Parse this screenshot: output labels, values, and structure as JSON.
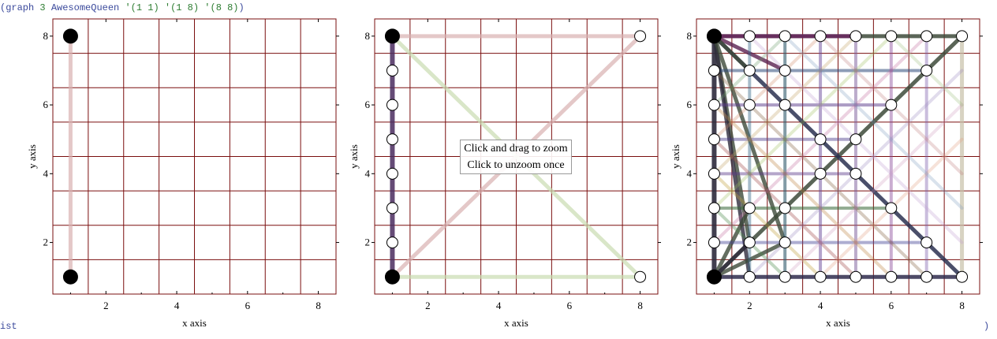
{
  "repl": {
    "open": "(graph",
    "arg1": "3",
    "arg2": "AwesomeQueen",
    "arg3": "'(1 1)",
    "arg4": "'(1 8)",
    "arg5": "'(8 8)",
    "close": ")",
    "status_left": "ist",
    "status_right": ")"
  },
  "tooltip": {
    "line1": "Click and drag to zoom",
    "line2": "Click to unzoom once"
  },
  "colors": {
    "grid": "#7a0f0f",
    "axis": "#000000",
    "filled_node": "#000000",
    "open_node": "#ffffff"
  },
  "chart_data": [
    {
      "type": "scatter",
      "panel": "left",
      "xlabel": "x axis",
      "ylabel": "y axis",
      "xlim": [
        0.5,
        8.5
      ],
      "ylim": [
        0.5,
        8.5
      ],
      "xticks": [
        2,
        4,
        6,
        8
      ],
      "yticks": [
        2,
        4,
        6,
        8
      ],
      "filled_nodes": [
        [
          1,
          1
        ],
        [
          1,
          8
        ]
      ],
      "open_nodes": [],
      "edges": [
        {
          "from": [
            1,
            1
          ],
          "to": [
            1,
            8
          ],
          "color": "#d8b0b0",
          "opacity": 0.7,
          "width": 5
        }
      ]
    },
    {
      "type": "scatter",
      "panel": "middle",
      "xlabel": "x axis",
      "ylabel": "y axis",
      "xlim": [
        0.5,
        8.5
      ],
      "ylim": [
        0.5,
        8.5
      ],
      "xticks": [
        2,
        4,
        6,
        8
      ],
      "yticks": [
        2,
        4,
        6,
        8
      ],
      "filled_nodes": [
        [
          1,
          1
        ],
        [
          1,
          8
        ]
      ],
      "open_nodes": [
        [
          1,
          2
        ],
        [
          1,
          3
        ],
        [
          1,
          4
        ],
        [
          1,
          5
        ],
        [
          1,
          6
        ],
        [
          1,
          7
        ],
        [
          8,
          8
        ],
        [
          8,
          1
        ]
      ],
      "edges": [
        {
          "from": [
            1,
            1
          ],
          "to": [
            1,
            8
          ],
          "color": "#4a2c5e",
          "opacity": 0.85,
          "width": 6
        },
        {
          "from": [
            1,
            8
          ],
          "to": [
            8,
            8
          ],
          "color": "#d8b0b0",
          "opacity": 0.7,
          "width": 5
        },
        {
          "from": [
            1,
            1
          ],
          "to": [
            8,
            8
          ],
          "color": "#d8b0b0",
          "opacity": 0.7,
          "width": 5
        },
        {
          "from": [
            1,
            8
          ],
          "to": [
            8,
            1
          ],
          "color": "#c9dcb0",
          "opacity": 0.7,
          "width": 5
        },
        {
          "from": [
            1,
            1
          ],
          "to": [
            8,
            1
          ],
          "color": "#c9dcb0",
          "opacity": 0.7,
          "width": 5
        }
      ]
    },
    {
      "type": "scatter",
      "panel": "right",
      "xlabel": "x axis",
      "ylabel": "y axis",
      "xlim": [
        0.5,
        8.5
      ],
      "ylim": [
        0.5,
        8.5
      ],
      "xticks": [
        2,
        4,
        6,
        8
      ],
      "yticks": [
        2,
        4,
        6,
        8
      ],
      "filled_nodes": [
        [
          1,
          1
        ],
        [
          1,
          8
        ]
      ],
      "open_nodes": [
        [
          2,
          8
        ],
        [
          3,
          8
        ],
        [
          4,
          8
        ],
        [
          5,
          8
        ],
        [
          6,
          8
        ],
        [
          7,
          8
        ],
        [
          8,
          8
        ],
        [
          1,
          7
        ],
        [
          2,
          7
        ],
        [
          3,
          7
        ],
        [
          7,
          7
        ],
        [
          1,
          6
        ],
        [
          2,
          6
        ],
        [
          3,
          6
        ],
        [
          6,
          6
        ],
        [
          1,
          5
        ],
        [
          4,
          5
        ],
        [
          5,
          5
        ],
        [
          1,
          4
        ],
        [
          4,
          4
        ],
        [
          5,
          4
        ],
        [
          1,
          3
        ],
        [
          2,
          3
        ],
        [
          3,
          3
        ],
        [
          6,
          3
        ],
        [
          1,
          2
        ],
        [
          2,
          2
        ],
        [
          3,
          2
        ],
        [
          7,
          2
        ],
        [
          2,
          1
        ],
        [
          3,
          1
        ],
        [
          4,
          1
        ],
        [
          5,
          1
        ],
        [
          6,
          1
        ],
        [
          7,
          1
        ],
        [
          8,
          1
        ]
      ],
      "edges": [
        {
          "from": [
            1,
            1
          ],
          "to": [
            1,
            8
          ],
          "color": "#2e2a3c",
          "opacity": 0.9,
          "width": 6
        },
        {
          "from": [
            1,
            8
          ],
          "to": [
            8,
            8
          ],
          "color": "#3d4a3a",
          "opacity": 0.85,
          "width": 5
        },
        {
          "from": [
            1,
            1
          ],
          "to": [
            8,
            1
          ],
          "color": "#2e2a4c",
          "opacity": 0.85,
          "width": 5
        },
        {
          "from": [
            1,
            1
          ],
          "to": [
            8,
            8
          ],
          "color": "#3d4a3a",
          "opacity": 0.85,
          "width": 5
        },
        {
          "from": [
            1,
            8
          ],
          "to": [
            8,
            1
          ],
          "color": "#2a3050",
          "opacity": 0.85,
          "width": 5
        },
        {
          "from": [
            1,
            8
          ],
          "to": [
            2,
            2
          ],
          "color": "#3d4a3a",
          "opacity": 0.8,
          "width": 5
        },
        {
          "from": [
            1,
            8
          ],
          "to": [
            2,
            1
          ],
          "color": "#2e2a3c",
          "opacity": 0.8,
          "width": 5
        },
        {
          "from": [
            1,
            8
          ],
          "to": [
            3,
            2
          ],
          "color": "#3d4a3a",
          "opacity": 0.8,
          "width": 5
        },
        {
          "from": [
            1,
            8
          ],
          "to": [
            3,
            7
          ],
          "color": "#5a2050",
          "opacity": 0.8,
          "width": 5
        },
        {
          "from": [
            1,
            8
          ],
          "to": [
            2,
            7
          ],
          "color": "#3d4a3a",
          "opacity": 0.8,
          "width": 5
        },
        {
          "from": [
            1,
            1
          ],
          "to": [
            2,
            3
          ],
          "color": "#3d4a3a",
          "opacity": 0.8,
          "width": 5
        },
        {
          "from": [
            1,
            1
          ],
          "to": [
            3,
            2
          ],
          "color": "#3d4a3a",
          "opacity": 0.8,
          "width": 5
        },
        {
          "from": [
            1,
            1
          ],
          "to": [
            2,
            2
          ],
          "color": "#2e2a3c",
          "opacity": 0.8,
          "width": 5
        },
        {
          "from": [
            1,
            8
          ],
          "to": [
            5,
            8
          ],
          "color": "#6a2060",
          "opacity": 0.8,
          "width": 5
        },
        {
          "from": [
            8,
            8
          ],
          "to": [
            8,
            1
          ],
          "color": "#c8c0a8",
          "opacity": 0.7,
          "width": 5
        },
        {
          "from": [
            1,
            7
          ],
          "to": [
            7,
            7
          ],
          "color": "#2e4a7a",
          "opacity": 0.55,
          "width": 4
        },
        {
          "from": [
            1,
            6
          ],
          "to": [
            6,
            6
          ],
          "color": "#5a3a8a",
          "opacity": 0.5,
          "width": 4
        },
        {
          "from": [
            1,
            5
          ],
          "to": [
            5,
            5
          ],
          "color": "#4a3a8a",
          "opacity": 0.45,
          "width": 4
        },
        {
          "from": [
            1,
            4
          ],
          "to": [
            5,
            4
          ],
          "color": "#5a3a8a",
          "opacity": 0.45,
          "width": 4
        },
        {
          "from": [
            1,
            3
          ],
          "to": [
            6,
            3
          ],
          "color": "#3a6a3a",
          "opacity": 0.55,
          "width": 4
        },
        {
          "from": [
            1,
            2
          ],
          "to": [
            7,
            2
          ],
          "color": "#4a4a9a",
          "opacity": 0.45,
          "width": 4
        },
        {
          "from": [
            2,
            8
          ],
          "to": [
            2,
            1
          ],
          "color": "#3a6a8a",
          "opacity": 0.45,
          "width": 4
        },
        {
          "from": [
            3,
            8
          ],
          "to": [
            3,
            1
          ],
          "color": "#2e5a6a",
          "opacity": 0.6,
          "width": 4
        },
        {
          "from": [
            4,
            8
          ],
          "to": [
            4,
            1
          ],
          "color": "#6a4a9a",
          "opacity": 0.5,
          "width": 4
        },
        {
          "from": [
            5,
            8
          ],
          "to": [
            5,
            1
          ],
          "color": "#7a5a9a",
          "opacity": 0.5,
          "width": 4
        },
        {
          "from": [
            6,
            8
          ],
          "to": [
            6,
            1
          ],
          "color": "#8a4a9a",
          "opacity": 0.45,
          "width": 4
        },
        {
          "from": [
            7,
            8
          ],
          "to": [
            7,
            1
          ],
          "color": "#7a5aaa",
          "opacity": 0.4,
          "width": 4
        },
        {
          "from": [
            1,
            7
          ],
          "to": [
            7,
            1
          ],
          "color": "#8a6a4a",
          "opacity": 0.35,
          "width": 4
        },
        {
          "from": [
            1,
            6
          ],
          "to": [
            6,
            1
          ],
          "color": "#c08a4a",
          "opacity": 0.35,
          "width": 4
        },
        {
          "from": [
            1,
            5
          ],
          "to": [
            5,
            1
          ],
          "color": "#a04a4a",
          "opacity": 0.35,
          "width": 4
        },
        {
          "from": [
            1,
            4
          ],
          "to": [
            4,
            1
          ],
          "color": "#c0a040",
          "opacity": 0.35,
          "width": 4
        },
        {
          "from": [
            1,
            3
          ],
          "to": [
            3,
            1
          ],
          "color": "#4a8a4a",
          "opacity": 0.35,
          "width": 4
        },
        {
          "from": [
            1,
            2
          ],
          "to": [
            7,
            8
          ],
          "color": "#c06a9a",
          "opacity": 0.3,
          "width": 4
        },
        {
          "from": [
            1,
            3
          ],
          "to": [
            6,
            8
          ],
          "color": "#a0c060",
          "opacity": 0.3,
          "width": 4
        },
        {
          "from": [
            1,
            4
          ],
          "to": [
            5,
            8
          ],
          "color": "#c0a060",
          "opacity": 0.3,
          "width": 4
        },
        {
          "from": [
            1,
            5
          ],
          "to": [
            4,
            8
          ],
          "color": "#d08a6a",
          "opacity": 0.3,
          "width": 4
        },
        {
          "from": [
            1,
            6
          ],
          "to": [
            3,
            8
          ],
          "color": "#6a9a6a",
          "opacity": 0.3,
          "width": 4
        },
        {
          "from": [
            2,
            1
          ],
          "to": [
            8,
            7
          ],
          "color": "#9a8ac0",
          "opacity": 0.3,
          "width": 4
        },
        {
          "from": [
            3,
            1
          ],
          "to": [
            8,
            6
          ],
          "color": "#d0a0c0",
          "opacity": 0.3,
          "width": 4
        },
        {
          "from": [
            4,
            1
          ],
          "to": [
            8,
            5
          ],
          "color": "#e0a080",
          "opacity": 0.3,
          "width": 4
        },
        {
          "from": [
            2,
            8
          ],
          "to": [
            8,
            2
          ],
          "color": "#c0a0d0",
          "opacity": 0.3,
          "width": 4
        },
        {
          "from": [
            3,
            8
          ],
          "to": [
            8,
            3
          ],
          "color": "#80a0c0",
          "opacity": 0.3,
          "width": 4
        },
        {
          "from": [
            4,
            8
          ],
          "to": [
            8,
            4
          ],
          "color": "#c08080",
          "opacity": 0.3,
          "width": 4
        },
        {
          "from": [
            6,
            8
          ],
          "to": [
            8,
            6
          ],
          "color": "#a0c080",
          "opacity": 0.3,
          "width": 4
        }
      ]
    }
  ]
}
